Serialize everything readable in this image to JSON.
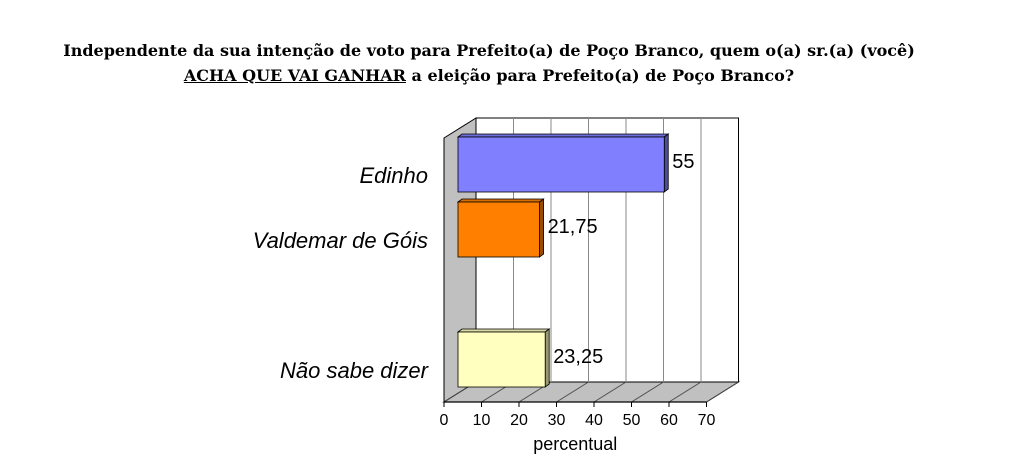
{
  "chart_data": {
    "type": "bar",
    "orientation": "horizontal",
    "style": "3d",
    "title": {
      "line1": "Independente da sua intenção de voto para Prefeito(a) de Poço Branco, quem o(a) sr.(a) (você)",
      "line2_underlined": "ACHA QUE VAI GANHAR",
      "line2_rest": " a eleição para Prefeito(a) de Poço Branco?"
    },
    "categories": [
      "Edinho",
      "Valdemar de Góis",
      "Não sabe dizer"
    ],
    "values": [
      55,
      21.75,
      23.25
    ],
    "value_labels": [
      "55",
      "21,75",
      "23,25"
    ],
    "colors": [
      "#8080FF",
      "#FF8000",
      "#FFFFC0"
    ],
    "xlabel": "percentual",
    "xlim": [
      0,
      70
    ],
    "xticks": [
      "0",
      "10",
      "20",
      "30",
      "40",
      "50",
      "60",
      "70"
    ],
    "grid": true
  }
}
